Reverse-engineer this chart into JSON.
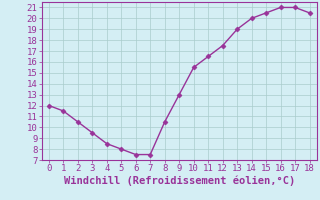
{
  "x": [
    0,
    1,
    2,
    3,
    4,
    5,
    6,
    7,
    8,
    9,
    10,
    11,
    12,
    13,
    14,
    15,
    16,
    17,
    18
  ],
  "y": [
    12.0,
    11.5,
    10.5,
    9.5,
    8.5,
    8.0,
    7.5,
    7.5,
    10.5,
    13.0,
    15.5,
    16.5,
    17.5,
    19.0,
    20.0,
    20.5,
    21.0,
    21.0,
    20.5
  ],
  "xlim": [
    -0.5,
    18.5
  ],
  "ylim": [
    7,
    21.5
  ],
  "yticks": [
    7,
    8,
    9,
    10,
    11,
    12,
    13,
    14,
    15,
    16,
    17,
    18,
    19,
    20,
    21
  ],
  "xticks": [
    0,
    1,
    2,
    3,
    4,
    5,
    6,
    7,
    8,
    9,
    10,
    11,
    12,
    13,
    14,
    15,
    16,
    17,
    18
  ],
  "xlabel": "Windchill (Refroidissement éolien,°C)",
  "line_color": "#993399",
  "marker_color": "#993399",
  "bg_color": "#d4eef4",
  "grid_color": "#aacccc",
  "tick_color": "#993399",
  "label_color": "#993399",
  "tick_fontsize": 6.5,
  "xlabel_fontsize": 7.5
}
